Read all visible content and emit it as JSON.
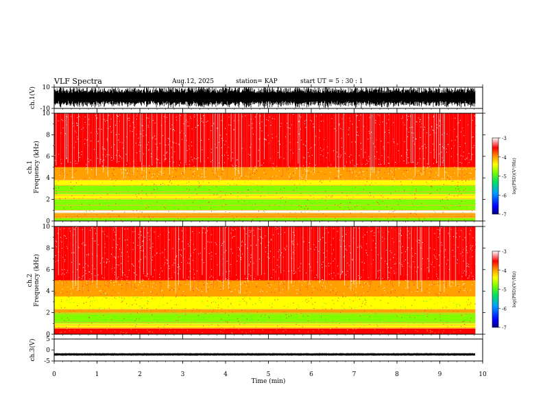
{
  "header": {
    "title": "VLF Spectra",
    "date": "Aug.12, 2025",
    "station": "station= KAP",
    "start": "start  UT =   5  : 30 : 1"
  },
  "colors": {
    "background": "#ffffff",
    "axis": "#000000",
    "colormap": [
      "#000080",
      "#0000ff",
      "#00a0ff",
      "#00e060",
      "#80ff00",
      "#ffff00",
      "#ffa000",
      "#ff0000",
      "#ffffff"
    ]
  },
  "chart_data": [
    {
      "type": "line",
      "name": "ch1-waveform",
      "ylabel": "ch.1(V)",
      "ylim": [
        -10,
        10
      ],
      "yticks": [
        "10",
        "-10"
      ],
      "xlim": [
        0,
        10
      ],
      "description_values": {
        "signal_range": [
          -10,
          10
        ]
      }
    },
    {
      "type": "heatmap",
      "name": "ch1-spectrogram",
      "ylabel_top": "ch.1",
      "ylabel": "Frequency  (kHz)",
      "ylim": [
        0,
        10
      ],
      "yticks": [
        "0",
        "2",
        "4",
        "6",
        "8",
        "10"
      ],
      "xlim": [
        0,
        10
      ],
      "data_end_min": 9.83,
      "colorbar": {
        "label": "log(PSD)(V²/Hz)",
        "range": [
          -7,
          -3
        ],
        "ticks": [
          "-3",
          "-4",
          "-5",
          "-6",
          "-7"
        ]
      },
      "bands": [
        {
          "freq_khz": [
            0.0,
            0.3
          ],
          "level": -5.0
        },
        {
          "freq_khz": [
            0.3,
            0.7
          ],
          "level": -4.2
        },
        {
          "freq_khz": [
            1.0,
            2.0
          ],
          "level": -4.9
        },
        {
          "freq_khz": [
            2.0,
            2.5
          ],
          "level": -4.3
        },
        {
          "freq_khz": [
            2.5,
            3.3
          ],
          "level": -5.0
        },
        {
          "freq_khz": [
            3.3,
            3.8
          ],
          "level": -4.6
        },
        {
          "freq_khz": [
            3.8,
            5.0
          ],
          "level": -3.8
        },
        {
          "freq_khz": [
            5.0,
            10.0
          ],
          "level": -3.3
        }
      ],
      "lines_khz": [
        0.3,
        0.55,
        0.75,
        1.0,
        1.45,
        2.05,
        2.4,
        2.7,
        3.3,
        3.8
      ]
    },
    {
      "type": "heatmap",
      "name": "ch2-spectrogram",
      "ylabel_top": "ch.2",
      "ylabel": "Frequency  (kHz)",
      "ylim": [
        0,
        10
      ],
      "yticks": [
        "0",
        "2",
        "4",
        "6",
        "8",
        "10"
      ],
      "xlim": [
        0,
        10
      ],
      "data_end_min": 9.83,
      "colorbar": {
        "label": "log(PSD)(V²/Hz)",
        "range": [
          -7,
          -3
        ],
        "ticks": [
          "-3",
          "-4",
          "-5",
          "-6",
          "-7"
        ]
      },
      "bands": [
        {
          "freq_khz": [
            0.0,
            0.6
          ],
          "level": -3.6
        },
        {
          "freq_khz": [
            0.6,
            1.0
          ],
          "level": -4.3
        },
        {
          "freq_khz": [
            1.0,
            2.0
          ],
          "level": -5.0
        },
        {
          "freq_khz": [
            2.0,
            2.3
          ],
          "level": -4.2
        },
        {
          "freq_khz": [
            2.3,
            3.5
          ],
          "level": -4.7
        },
        {
          "freq_khz": [
            3.5,
            5.0
          ],
          "level": -3.8
        },
        {
          "freq_khz": [
            5.0,
            10.0
          ],
          "level": -3.3
        }
      ],
      "lines_khz": [
        0.55,
        0.85,
        1.1,
        1.9,
        2.3
      ]
    },
    {
      "type": "line",
      "name": "ch3-waveform",
      "ylabel": "ch.3(V)",
      "ylim": [
        -5,
        5
      ],
      "yticks": [
        "5",
        "0",
        "-5"
      ],
      "xlim": [
        0,
        10
      ],
      "description_values": {
        "signal_center": -2,
        "signal_amplitude": 0.6
      }
    }
  ],
  "xaxis": {
    "label": "Time  (min)",
    "ticks": [
      "0",
      "1",
      "2",
      "3",
      "4",
      "5",
      "6",
      "7",
      "8",
      "9",
      "10"
    ]
  }
}
